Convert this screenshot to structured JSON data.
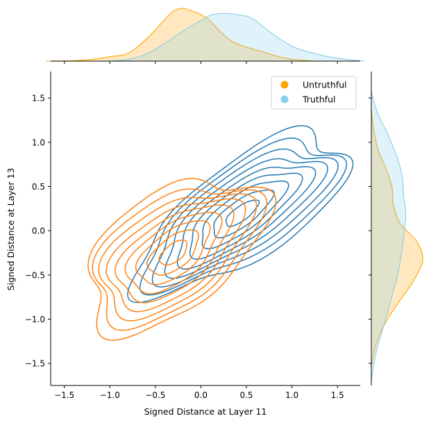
{
  "chart_data": {
    "type": "kde-jointplot",
    "xlabel": "Signed Distance at Layer 11",
    "ylabel": "Signed Distance at Layer 13",
    "xlim": [
      -1.65,
      1.75
    ],
    "ylim": [
      -1.75,
      1.8
    ],
    "xticks": [
      -1.5,
      -1.0,
      -0.5,
      0.0,
      0.5,
      1.0,
      1.5
    ],
    "xtick_labels": [
      "−1.5",
      "−1.0",
      "−0.5",
      "0.0",
      "0.5",
      "1.0",
      "1.5"
    ],
    "yticks": [
      -1.5,
      -1.0,
      -0.5,
      0.0,
      0.5,
      1.0,
      1.5
    ],
    "ytick_labels": [
      "−1.5",
      "−1.0",
      "−0.5",
      "0.0",
      "0.5",
      "1.0",
      "1.5"
    ],
    "legend_position": "top-right",
    "series": [
      {
        "name": "Untruthful",
        "marker_color": "#FFA500",
        "contour_color": "#ff7f0e",
        "center": [
          -0.3,
          -0.25
        ],
        "spread": [
          0.42,
          0.38
        ],
        "correlation": 0.55,
        "levels": 9,
        "marginal_x": [
          [
            -1.7,
            0.0
          ],
          [
            -1.4,
            0.005
          ],
          [
            -1.2,
            0.02
          ],
          [
            -1.0,
            0.05
          ],
          [
            -0.8,
            0.09
          ],
          [
            -0.6,
            0.25
          ],
          [
            -0.4,
            0.47
          ],
          [
            -0.3,
            0.57
          ],
          [
            -0.2,
            0.6
          ],
          [
            -0.1,
            0.57
          ],
          [
            0.0,
            0.53
          ],
          [
            0.1,
            0.46
          ],
          [
            0.2,
            0.35
          ],
          [
            0.35,
            0.22
          ],
          [
            0.5,
            0.16
          ],
          [
            0.7,
            0.1
          ],
          [
            0.9,
            0.04
          ],
          [
            1.1,
            0.01
          ],
          [
            1.3,
            0.0
          ]
        ],
        "marginal_y": [
          [
            -1.55,
            0.0
          ],
          [
            -1.4,
            0.03
          ],
          [
            -1.2,
            0.1
          ],
          [
            -1.0,
            0.22
          ],
          [
            -0.8,
            0.38
          ],
          [
            -0.6,
            0.55
          ],
          [
            -0.4,
            0.68
          ],
          [
            -0.3,
            0.7
          ],
          [
            -0.2,
            0.67
          ],
          [
            -0.1,
            0.6
          ],
          [
            0.0,
            0.48
          ],
          [
            0.1,
            0.38
          ],
          [
            0.3,
            0.3
          ],
          [
            0.5,
            0.28
          ],
          [
            0.7,
            0.2
          ],
          [
            0.9,
            0.1
          ],
          [
            1.1,
            0.04
          ],
          [
            1.3,
            0.01
          ],
          [
            1.4,
            0.0
          ]
        ]
      },
      {
        "name": "Truthful",
        "marker_color": "#87CEEB",
        "contour_color": "#1f77b4",
        "center": [
          0.45,
          0.2
        ],
        "spread": [
          0.5,
          0.4
        ],
        "correlation": 0.75,
        "levels": 9,
        "marginal_x": [
          [
            -1.0,
            0.0
          ],
          [
            -0.8,
            0.02
          ],
          [
            -0.6,
            0.08
          ],
          [
            -0.4,
            0.2
          ],
          [
            -0.2,
            0.34
          ],
          [
            0.0,
            0.46
          ],
          [
            0.1,
            0.52
          ],
          [
            0.2,
            0.54
          ],
          [
            0.3,
            0.54
          ],
          [
            0.5,
            0.51
          ],
          [
            0.6,
            0.46
          ],
          [
            0.8,
            0.3
          ],
          [
            1.0,
            0.17
          ],
          [
            1.2,
            0.1
          ],
          [
            1.4,
            0.05
          ],
          [
            1.6,
            0.02
          ],
          [
            1.8,
            0.0
          ]
        ],
        "marginal_y": [
          [
            -1.7,
            0.0
          ],
          [
            -1.4,
            0.06
          ],
          [
            -1.1,
            0.16
          ],
          [
            -0.8,
            0.26
          ],
          [
            -0.5,
            0.36
          ],
          [
            -0.2,
            0.42
          ],
          [
            0.0,
            0.45
          ],
          [
            0.2,
            0.47
          ],
          [
            0.4,
            0.44
          ],
          [
            0.55,
            0.43
          ],
          [
            0.7,
            0.4
          ],
          [
            0.9,
            0.32
          ],
          [
            1.1,
            0.22
          ],
          [
            1.3,
            0.1
          ],
          [
            1.5,
            0.02
          ],
          [
            1.6,
            0.0
          ]
        ]
      }
    ]
  }
}
